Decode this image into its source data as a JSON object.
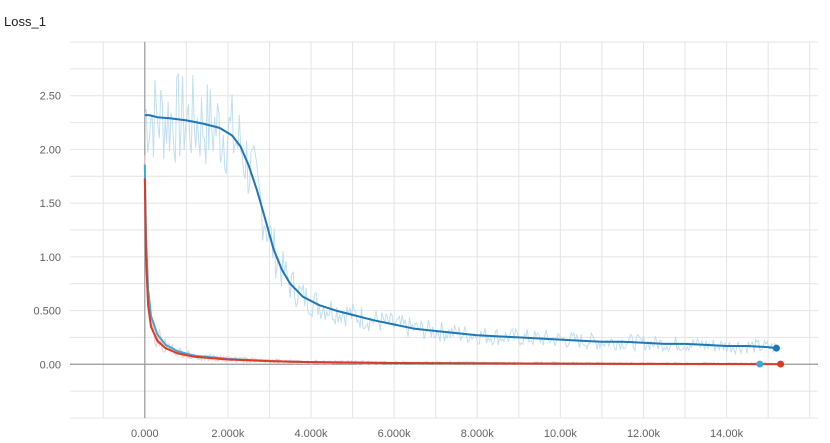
{
  "chart_data": {
    "type": "line",
    "title": "Loss_1",
    "xlabel": "",
    "ylabel": "",
    "x_tick_labels": [
      "0.000",
      "2.000k",
      "4.000k",
      "6.000k",
      "8.000k",
      "10.00k",
      "12.00k",
      "14.00k"
    ],
    "x_ticks": [
      0,
      2000,
      4000,
      6000,
      8000,
      10000,
      12000,
      14000
    ],
    "y_tick_labels": [
      "0.00",
      "0.500",
      "1.00",
      "1.50",
      "2.00",
      "2.50"
    ],
    "y_ticks": [
      0,
      0.5,
      1.0,
      1.5,
      2.0,
      2.5
    ],
    "xlim": [
      -1800,
      16200
    ],
    "ylim": [
      -0.5,
      3.0
    ],
    "grid": true,
    "legend": "none",
    "series": [
      {
        "color": "#1f77b4",
        "raw_color": "#b9dcef",
        "x": [
          0,
          100,
          300,
          600,
          1000,
          1400,
          1800,
          2100,
          2300,
          2500,
          2700,
          2900,
          3100,
          3300,
          3500,
          3800,
          4200,
          4600,
          5000,
          5500,
          6000,
          6500,
          7000,
          7500,
          8000,
          8500,
          9000,
          9500,
          10000,
          10500,
          11000,
          11500,
          12000,
          12500,
          13000,
          13500,
          14000,
          14500,
          15000,
          15200
        ],
        "y": [
          2.32,
          2.32,
          2.3,
          2.29,
          2.27,
          2.24,
          2.2,
          2.13,
          2.03,
          1.85,
          1.62,
          1.35,
          1.07,
          0.88,
          0.75,
          0.63,
          0.55,
          0.5,
          0.46,
          0.41,
          0.37,
          0.33,
          0.31,
          0.29,
          0.27,
          0.26,
          0.25,
          0.24,
          0.23,
          0.22,
          0.21,
          0.21,
          0.2,
          0.19,
          0.19,
          0.18,
          0.17,
          0.17,
          0.16,
          0.15
        ]
      },
      {
        "color": "#3fa9d6",
        "raw_color": "#f4c6c6",
        "x": [
          0,
          30,
          80,
          150,
          300,
          500,
          800,
          1200,
          2000,
          3000,
          4000,
          6000,
          8000,
          10000,
          12000,
          14000,
          14800
        ],
        "y": [
          1.86,
          1.2,
          0.7,
          0.45,
          0.28,
          0.18,
          0.12,
          0.08,
          0.05,
          0.03,
          0.02,
          0.01,
          0.01,
          0.005,
          0.003,
          0.002,
          0.002
        ]
      },
      {
        "color": "#d93b2b",
        "raw_color": "#f4c6c6",
        "x": [
          0,
          30,
          80,
          150,
          300,
          500,
          800,
          1200,
          2000,
          3000,
          4000,
          6000,
          8000,
          10000,
          12000,
          14000,
          15300
        ],
        "y": [
          1.73,
          1.0,
          0.55,
          0.35,
          0.22,
          0.15,
          0.1,
          0.07,
          0.045,
          0.03,
          0.02,
          0.012,
          0.008,
          0.006,
          0.004,
          0.003,
          0.002
        ]
      }
    ]
  }
}
